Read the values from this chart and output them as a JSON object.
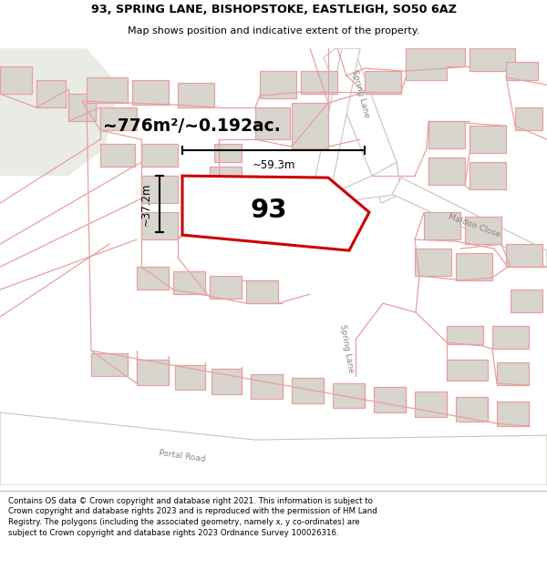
{
  "title_line1": "93, SPRING LANE, BISHOPSTOKE, EASTLEIGH, SO50 6AZ",
  "title_line2": "Map shows position and indicative extent of the property.",
  "footer_text": "Contains OS data © Crown copyright and database right 2021. This information is subject to Crown copyright and database rights 2023 and is reproduced with the permission of HM Land Registry. The polygons (including the associated geometry, namely x, y co-ordinates) are subject to Crown copyright and database rights 2023 Ordnance Survey 100026316.",
  "area_label": "~776m²/~0.192ac.",
  "number_label": "93",
  "dim_width": "~59.3m",
  "dim_height": "~37.2m",
  "map_bg": "#f7f6f4",
  "green_fill": "#e8ece5",
  "road_fill": "#ffffff",
  "road_gray": "#d0cdc8",
  "building_fill": "#d8d5cf",
  "building_edge": "#c8a8a8",
  "property_edge": "#cc0000",
  "pink": "#e8a0a0",
  "plot_fill": "#ffffff",
  "title_bg": "#ffffff",
  "footer_bg": "#ffffff",
  "dim_color": "#000000",
  "label_color": "#000000",
  "road_label_color": "#888888"
}
